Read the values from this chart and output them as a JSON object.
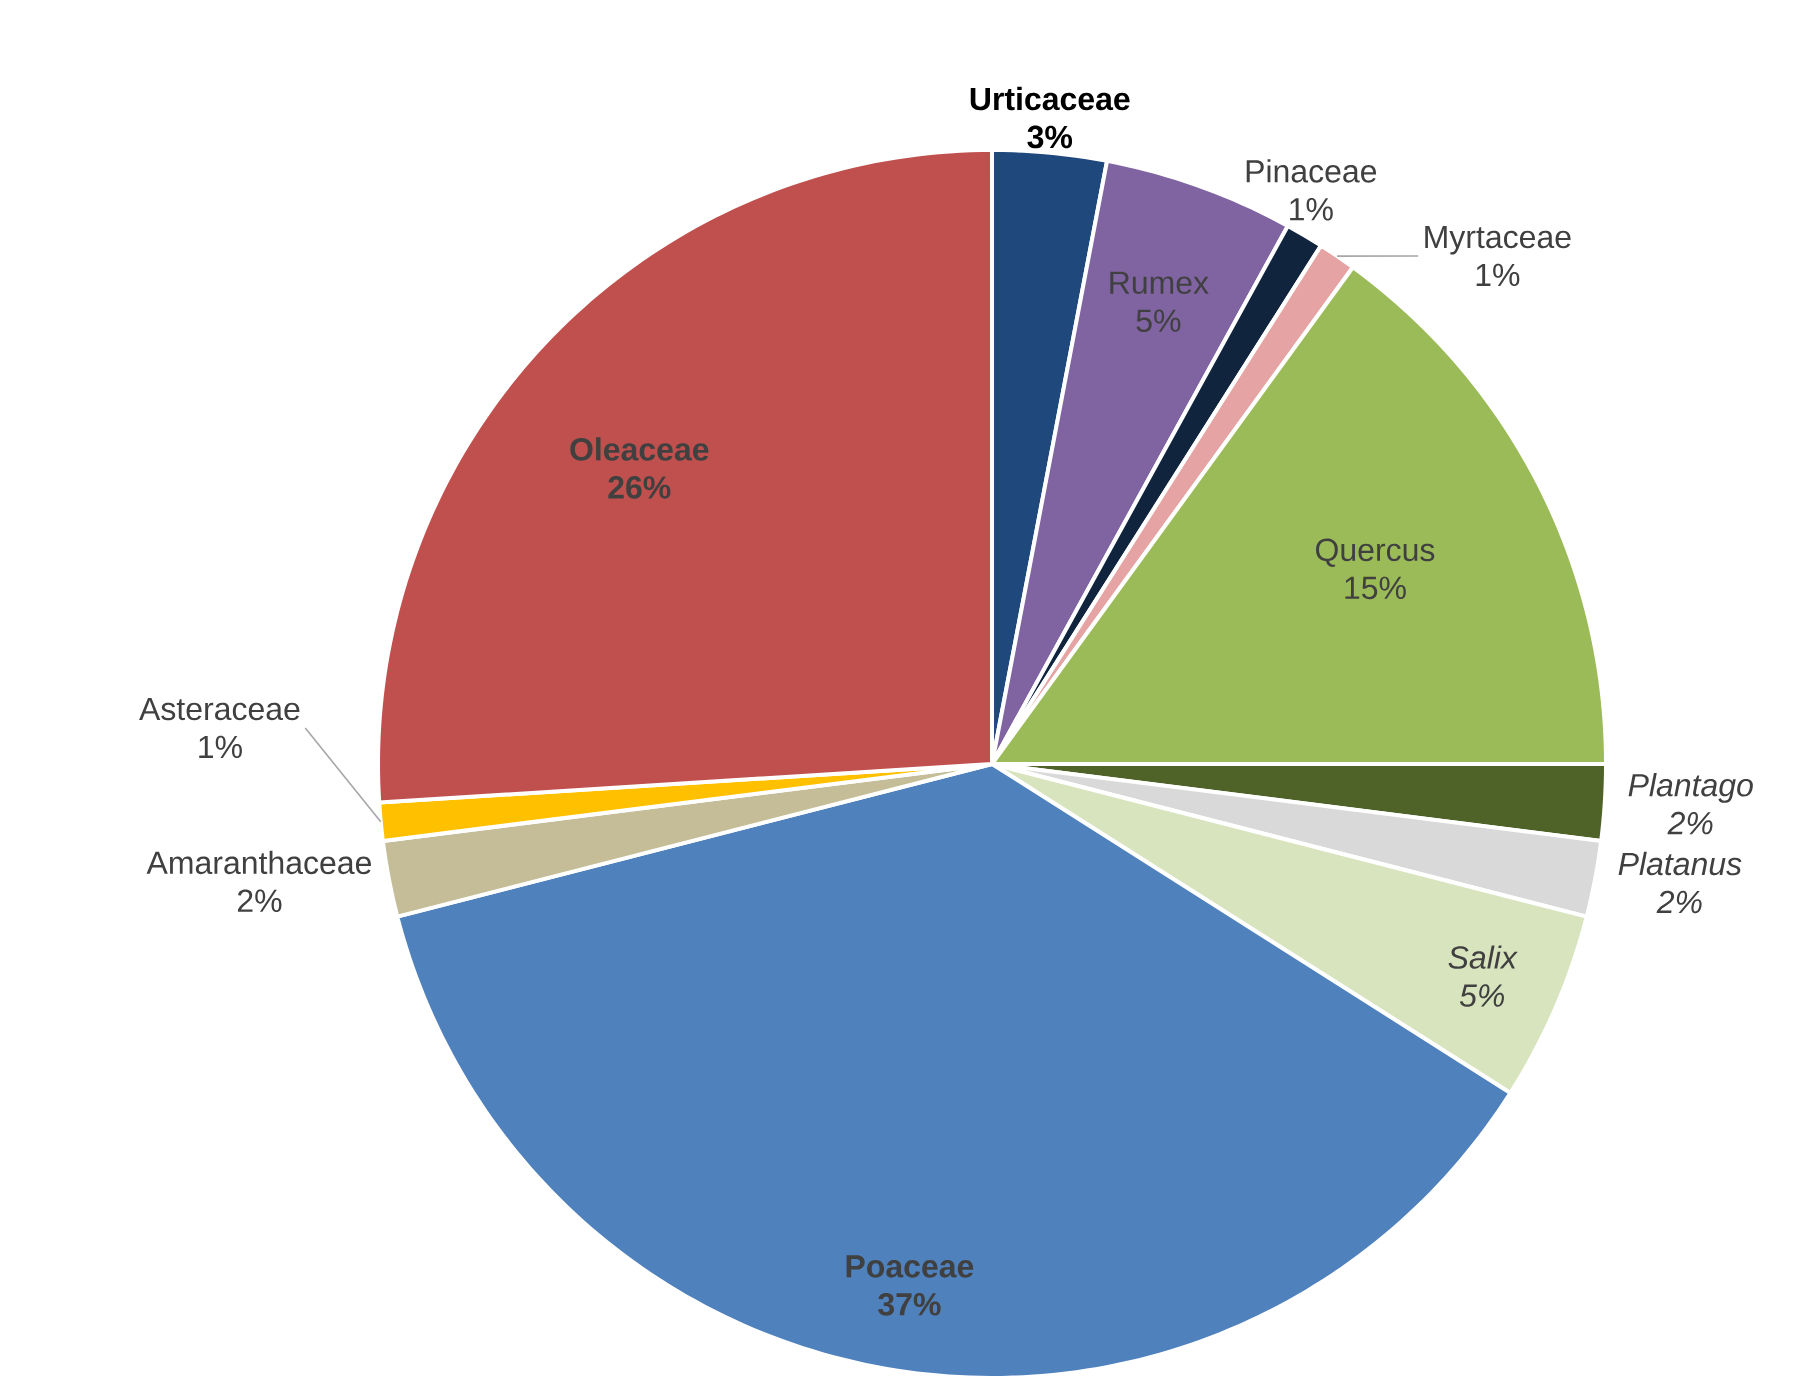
{
  "chart_data": {
    "type": "pie",
    "categories": [
      "Urticaceae",
      "Rumex",
      "Pinaceae",
      "Myrtaceae",
      "Quercus",
      "Plantago",
      "Platanus",
      "Salix",
      "Poaceae",
      "Amaranthaceae",
      "Asteraceae",
      "Oleaceae"
    ],
    "values": [
      3,
      5,
      1,
      1,
      15,
      2,
      2,
      5,
      37,
      2,
      1,
      26
    ],
    "value_labels": [
      "3%",
      "5%",
      "1%",
      "1%",
      "15%",
      "2%",
      "2%",
      "5%",
      "37%",
      "2%",
      "1%",
      "26%"
    ],
    "colors": [
      "#1f487c",
      "#8064a2",
      "#10243e",
      "#e6a3a3",
      "#9bbb59",
      "#4f6228",
      "#d9d9d9",
      "#d7e4bd",
      "#4f81bd",
      "#c4bd97",
      "#ffc000",
      "#c0504d"
    ]
  }
}
